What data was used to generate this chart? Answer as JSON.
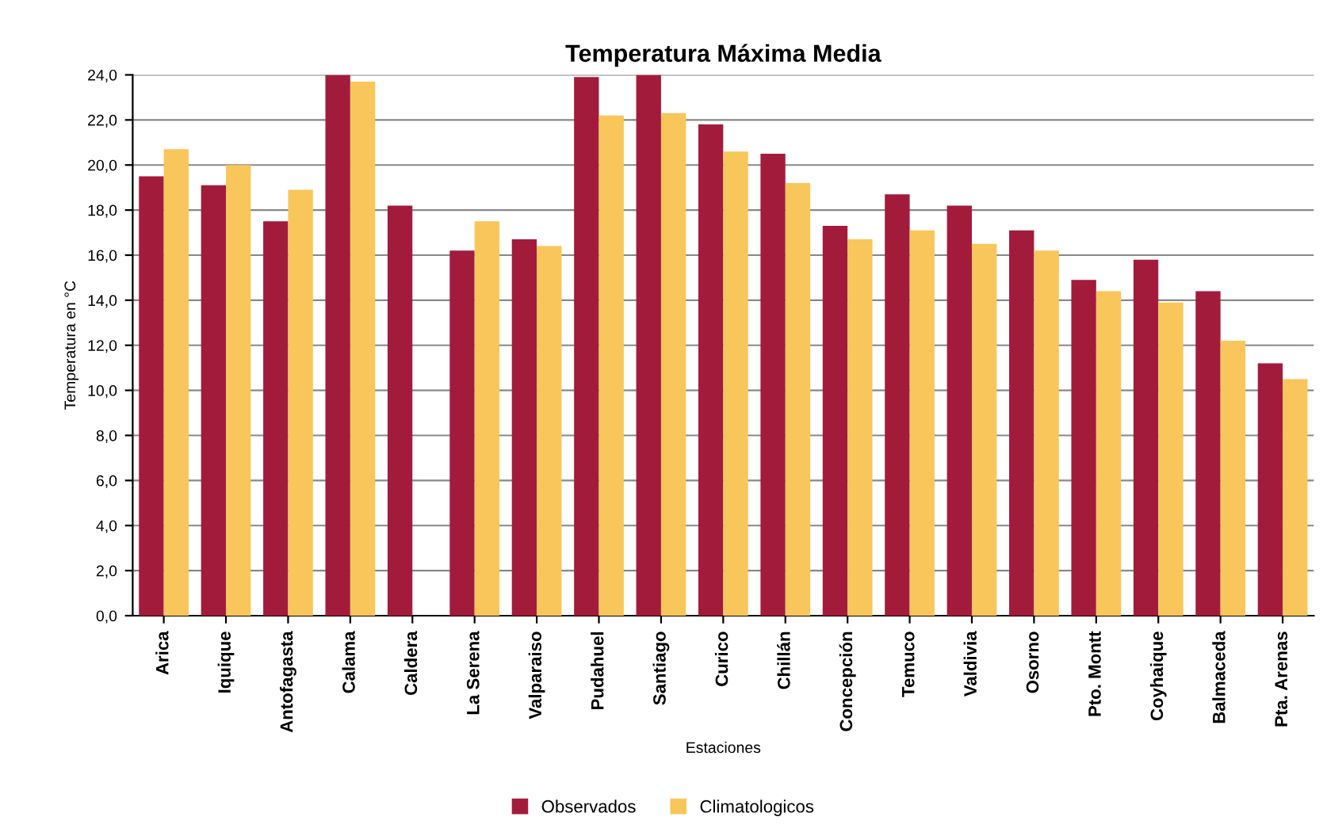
{
  "chart_data": {
    "type": "bar",
    "title": "Temperatura Máxima Media",
    "xlabel": "Estaciones",
    "ylabel": "Temperatura en °C",
    "categories": [
      "Arica",
      "Iquique",
      "Antofagasta",
      "Calama",
      "Caldera",
      "La Serena",
      "Valparaiso",
      "Pudahuel",
      "Santiago",
      "Curico",
      "Chillán",
      "Concepción",
      "Temuco",
      "Valdivia",
      "Osorno",
      "Pto. Montt",
      "Coyhaique",
      "Balmaceda",
      "Pta. Arenas"
    ],
    "series": [
      {
        "name": "Observados",
        "color": "#a31b3b",
        "values": [
          19.5,
          19.1,
          17.5,
          24.0,
          18.2,
          16.2,
          16.7,
          23.9,
          24.0,
          21.8,
          20.5,
          17.3,
          18.7,
          18.2,
          17.1,
          14.9,
          15.8,
          14.4,
          11.2
        ]
      },
      {
        "name": "Climatologicos",
        "color": "#f8c65a",
        "values": [
          20.7,
          20.0,
          18.9,
          23.7,
          null,
          17.5,
          16.4,
          22.2,
          22.3,
          20.6,
          19.2,
          16.7,
          17.1,
          16.5,
          16.2,
          14.4,
          13.9,
          12.2,
          10.5
        ]
      }
    ],
    "ylim": [
      0,
      24
    ],
    "yticks": [
      {
        "value": 0,
        "label": "0,0"
      },
      {
        "value": 2,
        "label": "2,0"
      },
      {
        "value": 4,
        "label": "4,0"
      },
      {
        "value": 6,
        "label": "6,0"
      },
      {
        "value": 8,
        "label": "8,0"
      },
      {
        "value": 10,
        "label": "10,0"
      },
      {
        "value": 12,
        "label": "12,0"
      },
      {
        "value": 14,
        "label": "14,0"
      },
      {
        "value": 16,
        "label": "16,0"
      },
      {
        "value": 18,
        "label": "18,0"
      },
      {
        "value": 20,
        "label": "20,0"
      },
      {
        "value": 22,
        "label": "22,0"
      },
      {
        "value": 24,
        "label": "24,0"
      }
    ],
    "grid": "y",
    "legend": "bottom"
  }
}
